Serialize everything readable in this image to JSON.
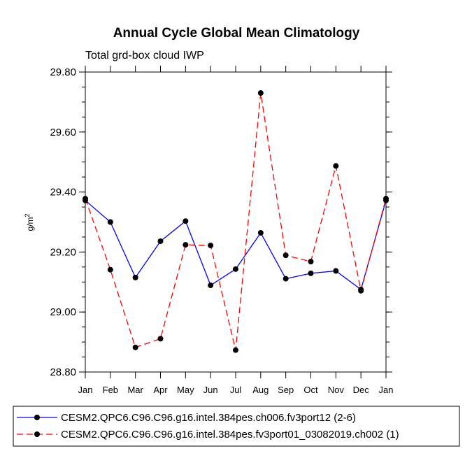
{
  "chart_data": {
    "type": "line",
    "title": "Annual Cycle Global Mean Climatology",
    "subtitle": "Total grd-box cloud IWP",
    "xlabel": "",
    "ylabel": "g/m",
    "ylabel_superscript": "2",
    "categories": [
      "Jan",
      "Feb",
      "Mar",
      "Apr",
      "May",
      "Jun",
      "Jul",
      "Aug",
      "Sep",
      "Oct",
      "Nov",
      "Dec",
      "Jan"
    ],
    "ylim": [
      28.8,
      29.8
    ],
    "yticks": [
      "28.80",
      "29.00",
      "29.20",
      "29.40",
      "29.60",
      "29.80"
    ],
    "ytick_values": [
      28.8,
      29.0,
      29.2,
      29.4,
      29.6,
      29.8
    ],
    "legend_position": "bottom",
    "series": [
      {
        "name": "CESM2.QPC6.C96.C96.g16.intel.384pes.ch006.fv3port12 (2-6)",
        "color": "#0000ff",
        "dash": "solid",
        "values": [
          29.372,
          29.3,
          29.115,
          29.236,
          29.303,
          29.089,
          29.143,
          29.264,
          29.111,
          29.129,
          29.137,
          29.075,
          29.372
        ]
      },
      {
        "name": "CESM2.QPC6.C96.C96.g16.intel.384pes.fv3port01_03082019.ch002 (1)",
        "color": "#ff0000",
        "dash": "dashed",
        "values": [
          29.378,
          29.141,
          28.882,
          28.911,
          29.224,
          29.222,
          28.873,
          29.73,
          29.189,
          29.168,
          29.487,
          29.071,
          29.378
        ]
      }
    ]
  }
}
